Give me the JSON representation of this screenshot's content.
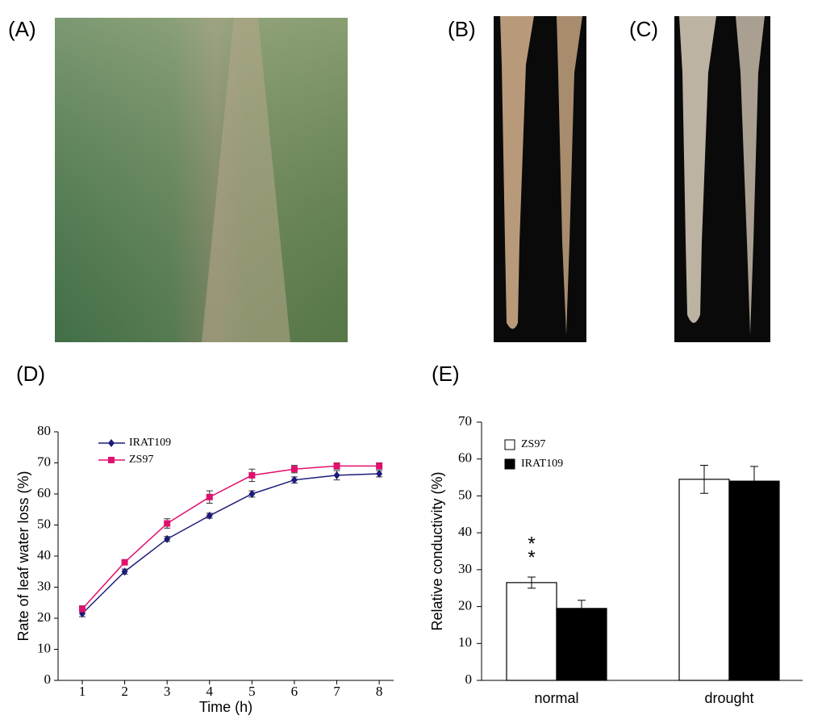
{
  "photos": [
    {
      "label": "(A)"
    },
    {
      "label": "(B)"
    },
    {
      "label": "(C)"
    }
  ],
  "chart_data": [
    {
      "type": "line",
      "label": "(D)",
      "x_label": "Time (h)",
      "y_label": "Rate of leaf water loss (%)",
      "x": [
        1,
        2,
        3,
        4,
        5,
        6,
        7,
        8
      ],
      "xlim": [
        0.43,
        8.34
      ],
      "xticks": [
        1,
        2,
        3,
        4,
        5,
        6,
        7,
        8
      ],
      "ylim": [
        0,
        80
      ],
      "yticks": [
        0,
        10,
        20,
        30,
        40,
        50,
        60,
        70,
        80
      ],
      "legend": "upper left",
      "series": [
        {
          "name": "IRAT109",
          "color": "#1c1c7a",
          "marker": "diamond",
          "values": [
            21.5,
            35,
            45.5,
            53,
            60,
            64.5,
            66,
            66.5
          ],
          "errors": [
            1,
            0.8,
            0.8,
            0.8,
            1,
            1,
            1.5,
            1
          ]
        },
        {
          "name": "ZS97",
          "color": "#e0106e",
          "marker": "square",
          "values": [
            23,
            38,
            50.5,
            59,
            66,
            68,
            69,
            69
          ],
          "errors": [
            1,
            0.8,
            1.5,
            2,
            2,
            1.2,
            1,
            1
          ]
        }
      ]
    },
    {
      "type": "bar",
      "label": "(E)",
      "y_label": "Relative conductivity (%)",
      "categories": [
        "normal",
        "drought"
      ],
      "ylim": [
        0,
        70
      ],
      "yticks": [
        0,
        10,
        20,
        30,
        40,
        50,
        60,
        70
      ],
      "legend": "upper left",
      "annotations": [
        "*",
        "*"
      ],
      "series": [
        {
          "name": "ZS97",
          "color": "#ffffff",
          "values": [
            26.5,
            54.5
          ],
          "errors": [
            1.5,
            3.8
          ]
        },
        {
          "name": "IRAT109",
          "color": "#000000",
          "values": [
            19.5,
            54
          ],
          "errors": [
            2.2,
            4
          ]
        }
      ]
    }
  ]
}
